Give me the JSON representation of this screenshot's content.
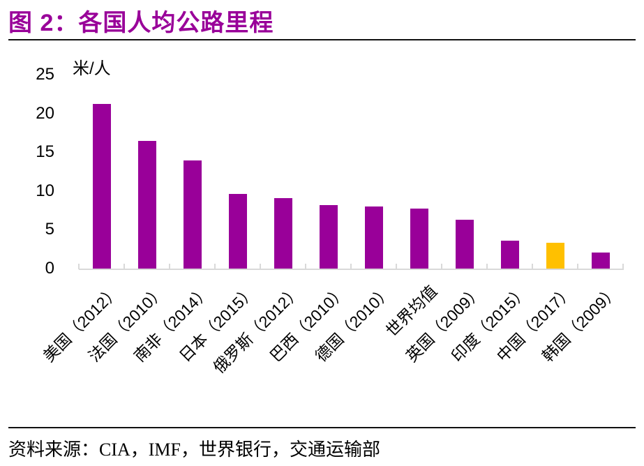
{
  "header": {
    "title": "图 2：各国人均公路里程"
  },
  "footer": {
    "source": "资料来源：CIA，IMF，世界银行，交通运输部"
  },
  "chart_data": {
    "type": "bar",
    "title": "各国人均公路里程",
    "unit": "米/人",
    "categories": [
      "美国（2012）",
      "法国（2010）",
      "南非（2014）",
      "日本（2015）",
      "俄罗斯（2012）",
      "巴西（2010）",
      "德国（2010）",
      "世界均值",
      "英国（2009）",
      "印度（2015）",
      "中国（2017）",
      "韩国（2009）"
    ],
    "values": [
      21.2,
      16.5,
      13.9,
      9.6,
      9.1,
      8.2,
      8.0,
      7.7,
      6.3,
      3.6,
      3.3,
      2.1
    ],
    "ylabel": "",
    "xlabel": "",
    "ylim": [
      0,
      25
    ],
    "y_ticks": [
      0,
      5,
      10,
      15,
      20,
      25
    ],
    "grid": false,
    "legend": false,
    "colors": {
      "bar_default": "#990099",
      "bar_highlight": "#ffc000",
      "highlight_index": 10,
      "axis": "#d9d9d9",
      "title": "#990099"
    }
  }
}
